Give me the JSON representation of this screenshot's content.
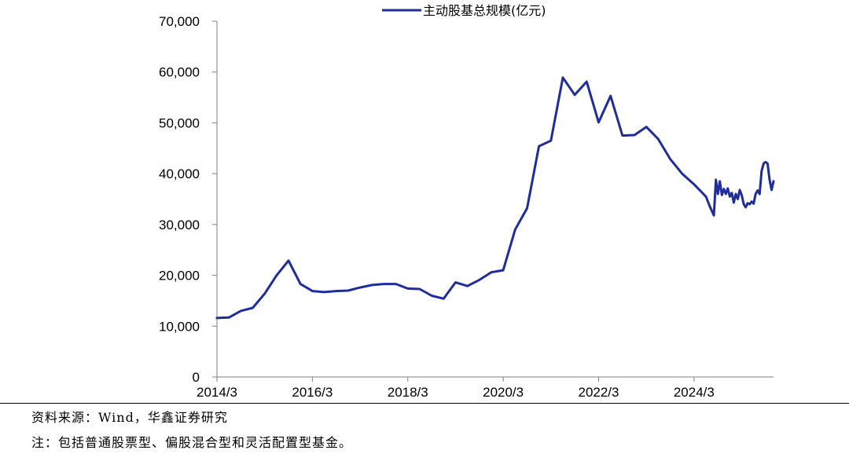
{
  "chart_data": {
    "type": "line",
    "title": "",
    "xlabel": "",
    "ylabel": "",
    "legend_position": "top",
    "grid": false,
    "ylim": [
      0,
      70000
    ],
    "y_ticks": [
      "0",
      "10,000",
      "20,000",
      "30,000",
      "40,000",
      "50,000",
      "60,000",
      "70,000"
    ],
    "y_tick_values": [
      0,
      10000,
      20000,
      30000,
      40000,
      50000,
      60000,
      70000
    ],
    "x_ticks": [
      "2014/3",
      "2016/3",
      "2018/3",
      "2020/3",
      "2022/3",
      "2024/3"
    ],
    "x_tick_values": [
      0,
      24,
      48,
      72,
      96,
      120
    ],
    "x_unit": "months since 2014/3",
    "xlim": [
      0,
      140
    ],
    "series": [
      {
        "name": "主动股基总规模(亿元)",
        "color": "#1f2d9a",
        "x": [
          0,
          3,
          6,
          9,
          12,
          15,
          18,
          21,
          24,
          27,
          30,
          33,
          36,
          39,
          42,
          45,
          48,
          51,
          54,
          57,
          60,
          63,
          66,
          69,
          72,
          75,
          78,
          81,
          84,
          87,
          90,
          93,
          96,
          99,
          102,
          105,
          108,
          111,
          114,
          117,
          120,
          123,
          124,
          125,
          125.5,
          126,
          126.5,
          127,
          127.5,
          128,
          128.5,
          129,
          129.5,
          130,
          130.5,
          131,
          131.5,
          132,
          132.5,
          133,
          133.5,
          134,
          134.5,
          135,
          135.5,
          136,
          136.5,
          137,
          137.5,
          138,
          138.5,
          139,
          139.5,
          140
        ],
        "values": [
          11600,
          11700,
          13000,
          13600,
          16400,
          20000,
          22900,
          18300,
          16900,
          16700,
          16900,
          17000,
          17600,
          18100,
          18300,
          18300,
          17400,
          17300,
          16000,
          15400,
          18600,
          17900,
          19100,
          20600,
          21000,
          29000,
          33200,
          45400,
          46500,
          58900,
          55500,
          58100,
          50100,
          55300,
          47500,
          47600,
          49200,
          46800,
          42900,
          40000,
          37900,
          35500,
          33500,
          31800,
          38800,
          36000,
          38500,
          35800,
          37000,
          36000,
          37100,
          35500,
          36200,
          34300,
          36000,
          35000,
          36800,
          35800,
          34000,
          33400,
          34200,
          34000,
          34500,
          34100,
          36000,
          36700,
          36000,
          40500,
          42000,
          42300,
          42000,
          38900,
          36800,
          38500
        ]
      }
    ]
  },
  "footer": {
    "source": "资料来源：Wind，华鑫证券研究",
    "note": "注：包括普通股票型、偏股混合型和灵活配置型基金。"
  }
}
